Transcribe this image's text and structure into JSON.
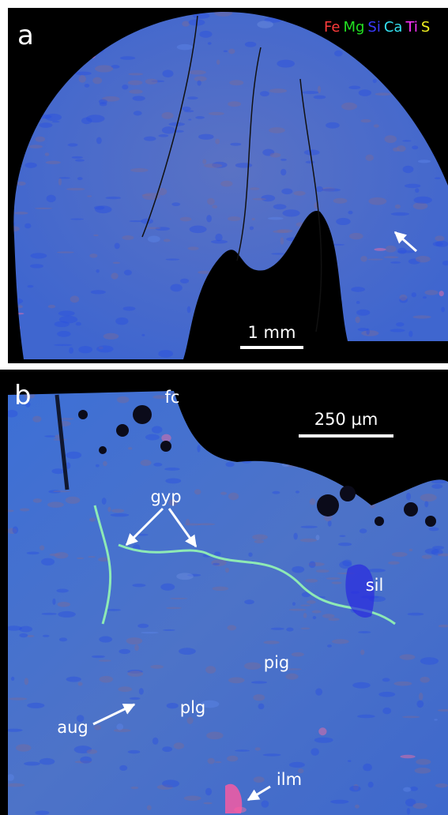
{
  "panel_a": {
    "label": "a",
    "legend": [
      {
        "text": "Fe",
        "color": "#ff3b3b"
      },
      {
        "text": "Mg",
        "color": "#22e022"
      },
      {
        "text": "Si",
        "color": "#3a3aff"
      },
      {
        "text": "Ca",
        "color": "#33e0f0"
      },
      {
        "text": "Ti",
        "color": "#ff33ff"
      },
      {
        "text": "S",
        "color": "#f0f020"
      }
    ],
    "scale_bar": "1 mm"
  },
  "panel_b": {
    "label": "b",
    "scale_bar": "250 µm",
    "annotations": {
      "fc": "fc",
      "gyp": "gyp",
      "sil": "sil",
      "pig": "pig",
      "plg": "plg",
      "aug": "aug",
      "ilm": "ilm"
    }
  }
}
